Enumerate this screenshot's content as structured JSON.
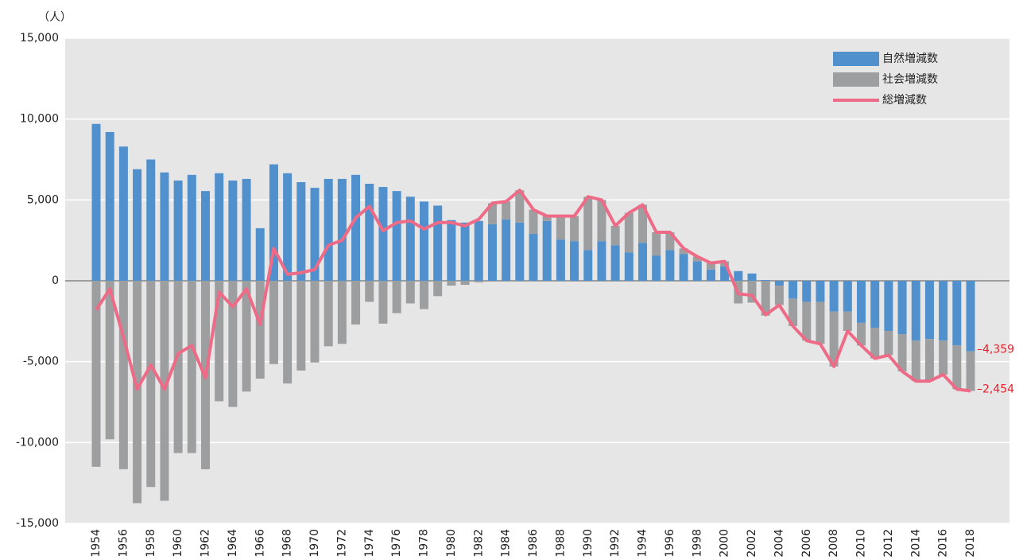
{
  "chart_data": {
    "type": "bar-line",
    "y_axis_label": "（人）",
    "categories": [
      "1954",
      null,
      "1956",
      null,
      "1958",
      null,
      "1960",
      null,
      "1962",
      null,
      "1964",
      null,
      "1966",
      null,
      "1968",
      null,
      "1970",
      null,
      "1972",
      null,
      "1974",
      null,
      "1976",
      null,
      "1978",
      null,
      "1980",
      null,
      "1982",
      null,
      "1984",
      null,
      "1986",
      null,
      "1988",
      null,
      "1990",
      null,
      "1992",
      null,
      "1994",
      null,
      "1996",
      null,
      "1998",
      null,
      "2000",
      null,
      "2002",
      null,
      "2004",
      null,
      "2006",
      null,
      "2008",
      null,
      "2010",
      null,
      "2012",
      null,
      "2014",
      null,
      "2016",
      null,
      "2018"
    ],
    "series": [
      {
        "name": "自然増減数",
        "kind": "bar",
        "color": "#4f90cd",
        "values": [
          9700,
          9200,
          8300,
          6900,
          7500,
          6700,
          6200,
          6550,
          5550,
          6650,
          6200,
          6300,
          3250,
          7200,
          6650,
          6100,
          5750,
          6300,
          6300,
          6550,
          6000,
          5800,
          5550,
          5200,
          4900,
          4650,
          3750,
          3600,
          3700,
          3500,
          3800,
          3600,
          2900,
          3700,
          2550,
          2450,
          1900,
          2450,
          2200,
          1750,
          2350,
          1550,
          1900,
          1650,
          1200,
          700,
          900,
          600,
          450,
          50,
          -300,
          -1100,
          -1300,
          -1300,
          -1900,
          -1900,
          -2600,
          -2900,
          -3100,
          -3300,
          -3700,
          -3600,
          -3700,
          -4000,
          -4359
        ],
        "value_labels": [
          null,
          null,
          null,
          null,
          null,
          null,
          null,
          null,
          null,
          null,
          null,
          null,
          null,
          null,
          null,
          null,
          null,
          null,
          null,
          null,
          null,
          null,
          null,
          null,
          null,
          null,
          null,
          null,
          null,
          null,
          null,
          null,
          null,
          null,
          null,
          null,
          null,
          null,
          null,
          null,
          null,
          null,
          null,
          null,
          null,
          null,
          null,
          null,
          null,
          null,
          null,
          null,
          null,
          null,
          null,
          null,
          null,
          null,
          null,
          null,
          null,
          null,
          null,
          null,
          "–4,359"
        ]
      },
      {
        "name": "社会増減数",
        "kind": "bar",
        "color": "#9d9ea0",
        "values": [
          -11500,
          -9800,
          -11650,
          -13750,
          -12750,
          -13600,
          -10650,
          -10650,
          -11650,
          -7450,
          -7800,
          -6850,
          -6050,
          -5150,
          -6350,
          -5550,
          -5050,
          -4050,
          -3900,
          -2700,
          -1300,
          -2650,
          -2000,
          -1400,
          -1750,
          -950,
          -300,
          -250,
          -100,
          1300,
          1100,
          2000,
          1500,
          300,
          1450,
          1550,
          3300,
          2550,
          1200,
          2450,
          2350,
          1450,
          1100,
          350,
          300,
          400,
          300,
          -1400,
          -1350,
          -2150,
          -1200,
          -1700,
          -2400,
          -2600,
          -3400,
          -1200,
          -1400,
          -1900,
          -1500,
          -2300,
          -2500,
          -2600,
          -2100,
          -2700,
          -2454
        ],
        "value_labels": [
          null,
          null,
          null,
          null,
          null,
          null,
          null,
          null,
          null,
          null,
          null,
          null,
          null,
          null,
          null,
          null,
          null,
          null,
          null,
          null,
          null,
          null,
          null,
          null,
          null,
          null,
          null,
          null,
          null,
          null,
          null,
          null,
          null,
          null,
          null,
          null,
          null,
          null,
          null,
          null,
          null,
          null,
          null,
          null,
          null,
          null,
          null,
          null,
          null,
          null,
          null,
          null,
          null,
          null,
          null,
          null,
          null,
          null,
          null,
          null,
          null,
          null,
          null,
          null,
          "–2,454"
        ]
      },
      {
        "name": "総増減数",
        "kind": "line",
        "color": "#ee6b87",
        "values": [
          -1800,
          -500,
          -3500,
          -6700,
          -5200,
          -6700,
          -4500,
          -4000,
          -6000,
          -700,
          -1600,
          -500,
          -2700,
          2000,
          400,
          500,
          700,
          2200,
          2500,
          3900,
          4600,
          3100,
          3600,
          3700,
          3200,
          3600,
          3600,
          3400,
          3800,
          4800,
          4900,
          5600,
          4400,
          4000,
          4000,
          4000,
          5200,
          5000,
          3400,
          4200,
          4700,
          3000,
          3000,
          2000,
          1500,
          1100,
          1200,
          -800,
          -900,
          -2100,
          -1500,
          -2800,
          -3700,
          -3900,
          -5300,
          -3100,
          -4000,
          -4800,
          -4600,
          -5600,
          -6200,
          -6200,
          -5800,
          -6700,
          -6813
        ]
      }
    ],
    "ylim": [
      -15000,
      15000
    ],
    "yticks": [
      {
        "value": -15000,
        "label": "-15,000"
      },
      {
        "value": -10000,
        "label": "-10,000"
      },
      {
        "value": -5000,
        "label": "-5,000"
      },
      0,
      {
        "value": 5000,
        "label": "5,000"
      },
      {
        "value": 10000,
        "label": "10,000"
      },
      {
        "value": 15000,
        "label": "15,000"
      }
    ],
    "grid": true,
    "legend": "upper right",
    "label_color": "#e8202a"
  }
}
